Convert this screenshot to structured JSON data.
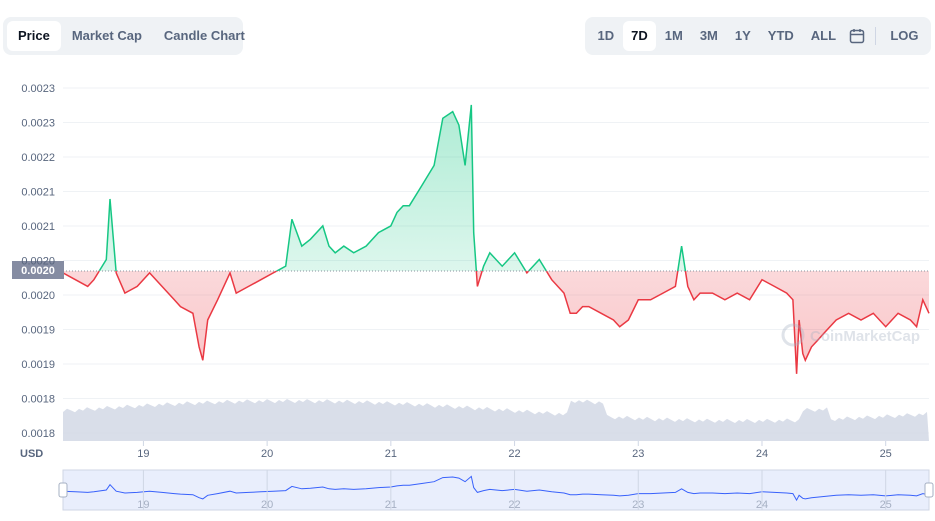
{
  "tabs": [
    {
      "label": "Price",
      "active": true
    },
    {
      "label": "Market Cap",
      "active": false
    },
    {
      "label": "Candle Chart",
      "active": false
    }
  ],
  "ranges": [
    {
      "label": "1D",
      "active": false
    },
    {
      "label": "7D",
      "active": true
    },
    {
      "label": "1M",
      "active": false
    },
    {
      "label": "3M",
      "active": false
    },
    {
      "label": "1Y",
      "active": false
    },
    {
      "label": "YTD",
      "active": false
    },
    {
      "label": "ALL",
      "active": false
    }
  ],
  "calendar_icon": "calendar-icon",
  "log_label": "LOG",
  "watermark": "CoinMarketCap",
  "currency_label": "USD",
  "colors": {
    "up": "#16c784",
    "down": "#ea3943",
    "volume": "#cfd6e4",
    "navigator": "#3861fb"
  },
  "chart_data": {
    "type": "line",
    "y_ticks": [
      "0.0023",
      "0.0023",
      "0.0022",
      "0.0021",
      "0.0021",
      "0.0020",
      "0.0020",
      "0.0019",
      "0.0019",
      "0.0018",
      "0.0018"
    ],
    "ylim": [
      0.00178,
      0.00232
    ],
    "x_ticks": [
      "19",
      "20",
      "21",
      "22",
      "23",
      "24",
      "25"
    ],
    "xlim": [
      18.35,
      25.35
    ],
    "reference_price": 0.002,
    "reference_label": "0.0020",
    "series": [
      {
        "x": [
          18.35,
          18.45,
          18.55,
          18.6,
          18.7,
          18.73,
          18.78,
          18.85,
          18.95,
          19.05,
          19.15,
          19.25,
          19.3,
          19.4,
          19.45,
          19.48,
          19.52,
          19.6,
          19.7,
          19.75,
          19.85,
          19.95,
          20.05,
          20.15,
          20.2,
          20.28,
          20.35,
          20.45,
          20.5,
          20.55,
          20.62,
          20.7,
          20.8,
          20.9,
          21.0,
          21.05,
          21.1,
          21.15,
          21.25,
          21.35,
          21.42,
          21.5,
          21.55,
          21.6,
          21.65,
          21.67,
          21.7,
          21.75,
          21.8,
          21.9,
          22.0,
          22.1,
          22.2,
          22.3,
          22.4,
          22.45,
          22.5,
          22.55,
          22.6,
          22.7,
          22.8,
          22.85,
          22.92,
          23.0,
          23.1,
          23.2,
          23.3,
          23.35,
          23.4,
          23.45,
          23.5,
          23.6,
          23.7,
          23.8,
          23.9,
          24.0,
          24.1,
          24.2,
          24.25,
          24.28,
          24.3,
          24.33,
          24.35,
          24.4,
          24.45,
          24.5,
          24.6,
          24.7,
          24.8,
          24.9,
          25.0,
          25.1,
          25.2,
          25.25,
          25.3,
          25.35
        ],
        "values": [
          0.00203,
          0.00202,
          0.00201,
          0.00202,
          0.00205,
          0.00214,
          0.00203,
          0.002,
          0.00201,
          0.00203,
          0.00201,
          0.00199,
          0.00198,
          0.00197,
          0.00192,
          0.0019,
          0.00196,
          0.00199,
          0.00203,
          0.002,
          0.00201,
          0.00202,
          0.00203,
          0.00204,
          0.00211,
          0.00207,
          0.00208,
          0.0021,
          0.00207,
          0.00206,
          0.00207,
          0.00206,
          0.00207,
          0.00209,
          0.0021,
          0.00212,
          0.00213,
          0.00213,
          0.00216,
          0.00219,
          0.00226,
          0.00227,
          0.00225,
          0.00219,
          0.00228,
          0.00209,
          0.00201,
          0.00204,
          0.00206,
          0.00204,
          0.00206,
          0.00203,
          0.00205,
          0.00202,
          0.002,
          0.00197,
          0.00197,
          0.00198,
          0.00198,
          0.00197,
          0.00196,
          0.00195,
          0.00196,
          0.00199,
          0.00199,
          0.002,
          0.00201,
          0.00207,
          0.00201,
          0.00199,
          0.002,
          0.002,
          0.00199,
          0.002,
          0.00199,
          0.00202,
          0.00201,
          0.002,
          0.00199,
          0.00188,
          0.00196,
          0.00191,
          0.0019,
          0.00192,
          0.00193,
          0.00194,
          0.00196,
          0.00197,
          0.00196,
          0.00197,
          0.00195,
          0.00197,
          0.00196,
          0.00195,
          0.00199,
          0.00197
        ]
      }
    ]
  }
}
